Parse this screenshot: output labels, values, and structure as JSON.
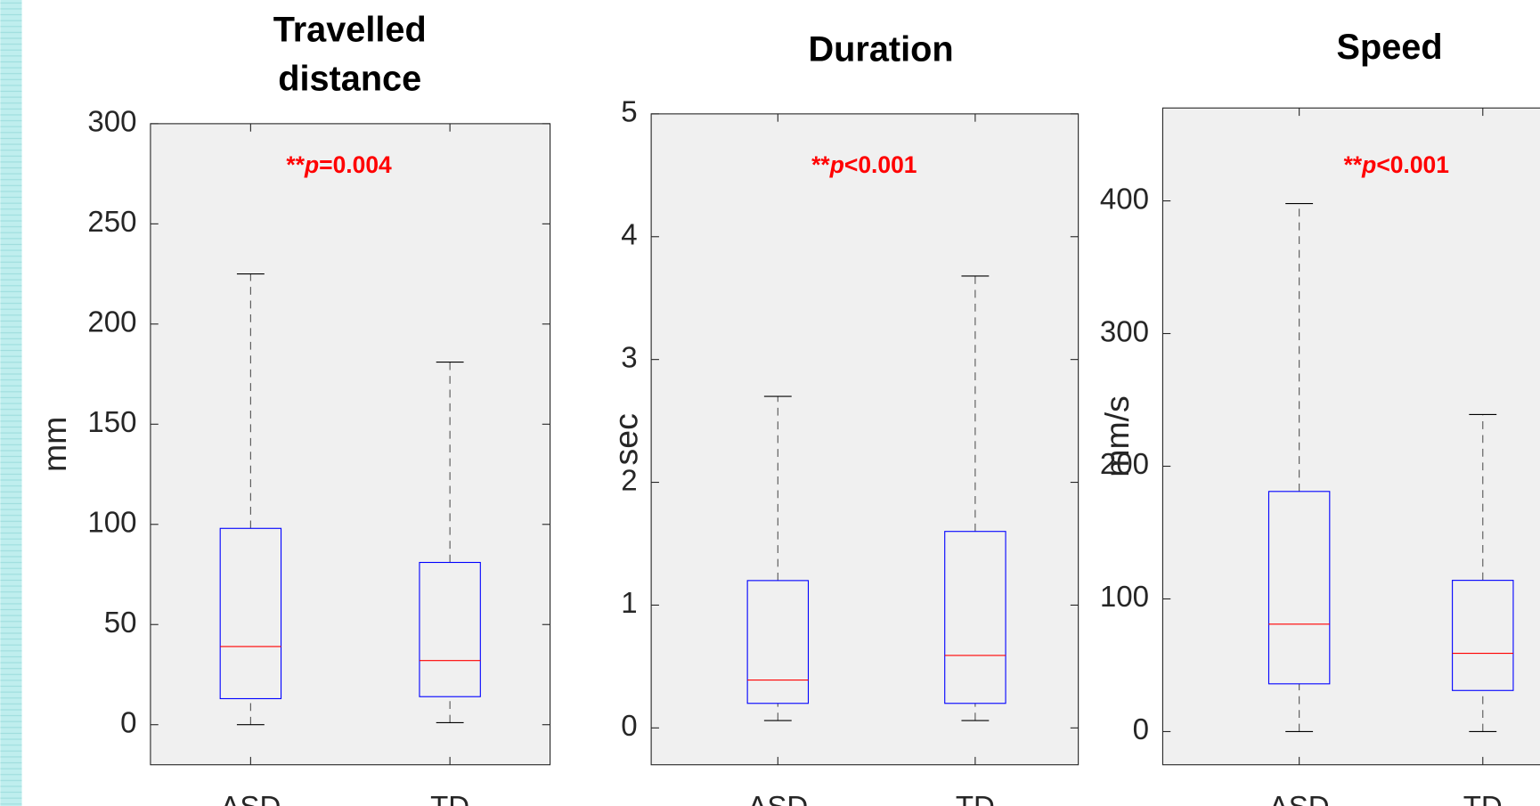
{
  "chart_data": [
    {
      "type": "box",
      "title": [
        "Travelled",
        "distance"
      ],
      "y_label": "mm",
      "annotation": [
        "**",
        "p",
        "=0.004"
      ],
      "categories": [
        "ASD",
        "TD"
      ],
      "boxes": [
        {
          "low": 0,
          "q1": 13,
          "median": 39,
          "q3": 98,
          "high": 225
        },
        {
          "low": 1,
          "q1": 14,
          "median": 32,
          "q3": 81,
          "high": 181
        }
      ],
      "box_color": "#0000ff",
      "median_color": "#ff0000",
      "whisker_color": "#555555",
      "annotation_color": "#ff0000",
      "ylim": [
        -20,
        300
      ],
      "yticks": [
        0,
        50,
        100,
        150,
        200,
        250,
        300
      ]
    },
    {
      "type": "box",
      "title": [
        "Duration"
      ],
      "y_label": "sec",
      "annotation": [
        "**",
        "p",
        "<0.001"
      ],
      "categories": [
        "ASD",
        "TD"
      ],
      "boxes": [
        {
          "low": 0.06,
          "q1": 0.2,
          "median": 0.39,
          "q3": 1.2,
          "high": 2.7
        },
        {
          "low": 0.06,
          "q1": 0.2,
          "median": 0.59,
          "q3": 1.6,
          "high": 3.68
        }
      ],
      "box_color": "#0000ff",
      "median_color": "#ff0000",
      "whisker_color": "#555555",
      "annotation_color": "#ff0000",
      "ylim": [
        -0.3,
        5
      ],
      "yticks": [
        0,
        1,
        2,
        3,
        4,
        5
      ]
    },
    {
      "type": "box",
      "title": [
        "Speed"
      ],
      "y_label": "mm/s",
      "annotation": [
        "**",
        "p",
        "<0.001"
      ],
      "categories": [
        "ASD",
        "TD"
      ],
      "boxes": [
        {
          "low": 0,
          "q1": 36,
          "median": 81,
          "q3": 181,
          "high": 398
        },
        {
          "low": 0,
          "q1": 31,
          "median": 59,
          "q3": 114,
          "high": 239
        }
      ],
      "box_color": "#0000ff",
      "median_color": "#ff0000",
      "whisker_color": "#555555",
      "annotation_color": "#ff0000",
      "ylim": [
        -25,
        470
      ],
      "yticks": [
        0,
        100,
        200,
        300,
        400
      ]
    }
  ]
}
